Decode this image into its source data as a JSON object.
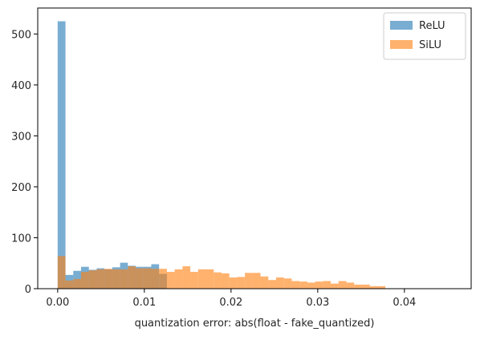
{
  "chart_data": {
    "type": "histogram",
    "title": "",
    "xlabel": "quantization error: abs(float - fake_quantized)",
    "ylabel": "",
    "xlim": [
      -0.0023,
      0.0477
    ],
    "ylim": [
      0,
      551
    ],
    "xticks": [
      0.0,
      0.01,
      0.02,
      0.03,
      0.04
    ],
    "xtick_labels": [
      "0.00",
      "0.01",
      "0.02",
      "0.03",
      "0.04"
    ],
    "yticks": [
      0,
      100,
      200,
      300,
      400,
      500
    ],
    "ytick_labels": [
      "0",
      "100",
      "200",
      "300",
      "400",
      "500"
    ],
    "bin_width": 0.0009,
    "bin_start": 0.0,
    "series": [
      {
        "name": "ReLU",
        "color": "#1f77b4",
        "alpha": 0.6,
        "counts": [
          525,
          27,
          35,
          43,
          37,
          40,
          38,
          42,
          51,
          45,
          43,
          43,
          48,
          29
        ]
      },
      {
        "name": "SiLU",
        "color": "#ff7f0e",
        "alpha": 0.6,
        "counts": [
          64,
          16,
          19,
          33,
          36,
          38,
          39,
          38,
          38,
          44,
          40,
          40,
          39,
          39,
          33,
          38,
          44,
          33,
          38,
          38,
          32,
          30,
          22,
          23,
          31,
          31,
          24,
          17,
          22,
          20,
          15,
          14,
          12,
          14,
          15,
          10,
          15,
          12,
          8,
          8,
          5,
          5
        ]
      }
    ],
    "legend": {
      "placement": "top-right",
      "entries": [
        "ReLU",
        "SiLU"
      ]
    },
    "grid": false
  }
}
